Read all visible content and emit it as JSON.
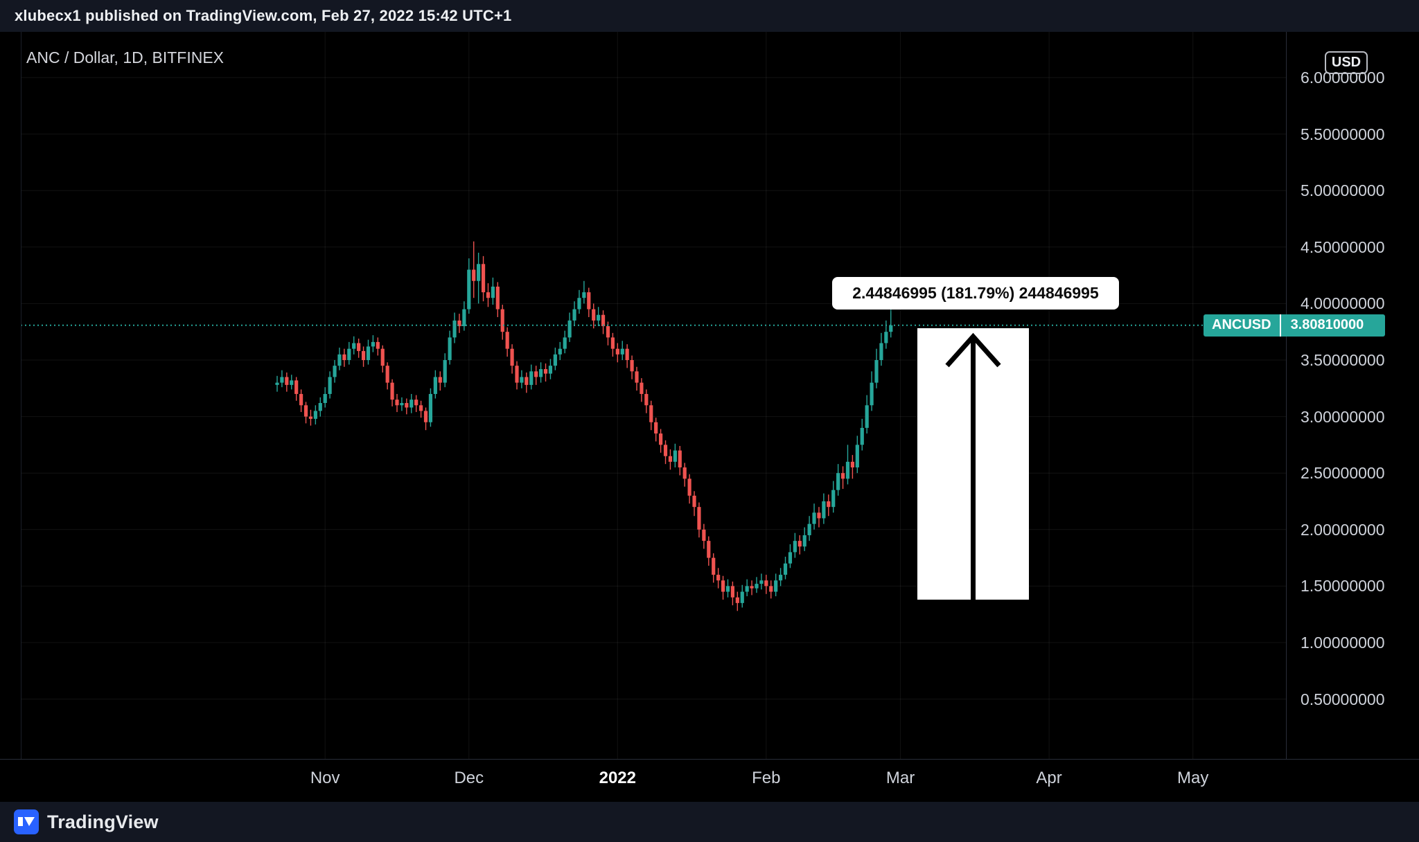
{
  "publish_bar": {
    "text": "xlubecx1 published on TradingView.com, Feb 27, 2022 15:42 UTC+1"
  },
  "legend": {
    "text": "ANC / Dollar, 1D, BITFINEX"
  },
  "currency_button": {
    "label": "USD"
  },
  "price_label": {
    "symbol": "ANCUSD",
    "price": "3.80810000"
  },
  "callout": {
    "text": "2.44846995 (181.79%) 244846995"
  },
  "footer": {
    "brand": "TradingView"
  },
  "colors": {
    "up": "#26a69a",
    "down": "#ef5350",
    "price_line": "#26a69a",
    "accent_white": "#ffffff"
  },
  "chart_data": {
    "type": "candlestick",
    "title": "ANC / Dollar, 1D, BITFINEX",
    "symbol": "ANCUSD",
    "interval": "1D",
    "exchange": "BITFINEX",
    "last_price": 3.8081,
    "measure_annotation": {
      "abs_change": "2.44846995",
      "pct_change": "181.79%",
      "extra": "244846995"
    },
    "ylim": [
      0.0,
      6.35
    ],
    "grid": true,
    "y_tick_values": [
      6.0,
      5.5,
      5.0,
      4.5,
      4.0,
      3.5,
      3.0,
      2.5,
      2.0,
      1.5,
      1.0,
      0.5
    ],
    "y_ticks": [
      "6.00000000",
      "5.50000000",
      "5.00000000",
      "4.50000000",
      "4.00000000",
      "3.50000000",
      "3.00000000",
      "2.50000000",
      "2.00000000",
      "1.50000000",
      "1.00000000",
      "0.50000000"
    ],
    "x_ticks": [
      {
        "label": "Nov",
        "day": 10,
        "bold": false
      },
      {
        "label": "Dec",
        "day": 40,
        "bold": false
      },
      {
        "label": "2022",
        "day": 71,
        "bold": true
      },
      {
        "label": "Feb",
        "day": 102,
        "bold": false
      },
      {
        "label": "Mar",
        "day": 130,
        "bold": false
      },
      {
        "label": "Apr",
        "day": 161,
        "bold": false
      },
      {
        "label": "May",
        "day": 191,
        "bold": false
      }
    ],
    "candles": [
      [
        3.28,
        3.36,
        3.22,
        3.3
      ],
      [
        3.3,
        3.41,
        3.26,
        3.35
      ],
      [
        3.35,
        3.39,
        3.22,
        3.28
      ],
      [
        3.28,
        3.37,
        3.24,
        3.32
      ],
      [
        3.32,
        3.35,
        3.14,
        3.2
      ],
      [
        3.2,
        3.24,
        3.04,
        3.1
      ],
      [
        3.1,
        3.13,
        2.94,
        3.0
      ],
      [
        3.0,
        3.06,
        2.92,
        2.98
      ],
      [
        2.98,
        3.1,
        2.93,
        3.05
      ],
      [
        3.05,
        3.17,
        3.0,
        3.12
      ],
      [
        3.12,
        3.26,
        3.08,
        3.2
      ],
      [
        3.2,
        3.4,
        3.16,
        3.35
      ],
      [
        3.35,
        3.5,
        3.3,
        3.45
      ],
      [
        3.45,
        3.61,
        3.41,
        3.55
      ],
      [
        3.55,
        3.6,
        3.44,
        3.5
      ],
      [
        3.5,
        3.66,
        3.46,
        3.6
      ],
      [
        3.6,
        3.71,
        3.55,
        3.65
      ],
      [
        3.65,
        3.69,
        3.52,
        3.58
      ],
      [
        3.58,
        3.62,
        3.44,
        3.5
      ],
      [
        3.5,
        3.68,
        3.46,
        3.62
      ],
      [
        3.62,
        3.72,
        3.57,
        3.66
      ],
      [
        3.66,
        3.7,
        3.54,
        3.6
      ],
      [
        3.6,
        3.63,
        3.39,
        3.45
      ],
      [
        3.45,
        3.48,
        3.24,
        3.3
      ],
      [
        3.3,
        3.33,
        3.09,
        3.15
      ],
      [
        3.15,
        3.2,
        3.04,
        3.1
      ],
      [
        3.1,
        3.17,
        3.05,
        3.12
      ],
      [
        3.12,
        3.16,
        3.02,
        3.08
      ],
      [
        3.08,
        3.2,
        3.03,
        3.15
      ],
      [
        3.15,
        3.19,
        3.04,
        3.1
      ],
      [
        3.1,
        3.14,
        2.99,
        3.05
      ],
      [
        3.05,
        3.08,
        2.88,
        2.95
      ],
      [
        2.95,
        3.25,
        2.91,
        3.2
      ],
      [
        3.2,
        3.41,
        3.16,
        3.35
      ],
      [
        3.35,
        3.4,
        3.23,
        3.3
      ],
      [
        3.3,
        3.56,
        3.26,
        3.5
      ],
      [
        3.5,
        3.76,
        3.46,
        3.7
      ],
      [
        3.7,
        3.92,
        3.65,
        3.85
      ],
      [
        3.85,
        3.91,
        3.74,
        3.8
      ],
      [
        3.8,
        4.02,
        3.76,
        3.95
      ],
      [
        3.95,
        4.4,
        3.91,
        4.3
      ],
      [
        4.3,
        4.55,
        4.05,
        4.2
      ],
      [
        4.2,
        4.45,
        4.0,
        4.35
      ],
      [
        4.35,
        4.42,
        4.02,
        4.1
      ],
      [
        4.1,
        4.18,
        3.97,
        4.05
      ],
      [
        4.05,
        4.23,
        3.99,
        4.15
      ],
      [
        4.15,
        4.19,
        3.88,
        3.95
      ],
      [
        3.95,
        3.99,
        3.68,
        3.75
      ],
      [
        3.75,
        3.79,
        3.53,
        3.6
      ],
      [
        3.6,
        3.64,
        3.38,
        3.45
      ],
      [
        3.45,
        3.49,
        3.24,
        3.3
      ],
      [
        3.3,
        3.41,
        3.25,
        3.35
      ],
      [
        3.35,
        3.39,
        3.21,
        3.28
      ],
      [
        3.28,
        3.46,
        3.24,
        3.4
      ],
      [
        3.4,
        3.45,
        3.28,
        3.35
      ],
      [
        3.35,
        3.48,
        3.3,
        3.42
      ],
      [
        3.42,
        3.47,
        3.31,
        3.38
      ],
      [
        3.38,
        3.51,
        3.33,
        3.45
      ],
      [
        3.45,
        3.61,
        3.41,
        3.55
      ],
      [
        3.55,
        3.66,
        3.5,
        3.6
      ],
      [
        3.6,
        3.76,
        3.56,
        3.7
      ],
      [
        3.7,
        3.92,
        3.66,
        3.85
      ],
      [
        3.85,
        4.02,
        3.8,
        3.95
      ],
      [
        3.95,
        4.12,
        3.91,
        4.05
      ],
      [
        4.05,
        4.2,
        4.0,
        4.1
      ],
      [
        4.1,
        4.14,
        3.88,
        3.95
      ],
      [
        3.95,
        4.0,
        3.78,
        3.85
      ],
      [
        3.85,
        3.97,
        3.8,
        3.9
      ],
      [
        3.9,
        3.94,
        3.73,
        3.8
      ],
      [
        3.8,
        3.84,
        3.63,
        3.7
      ],
      [
        3.7,
        3.74,
        3.53,
        3.6
      ],
      [
        3.6,
        3.65,
        3.48,
        3.55
      ],
      [
        3.55,
        3.67,
        3.5,
        3.6
      ],
      [
        3.6,
        3.64,
        3.43,
        3.5
      ],
      [
        3.5,
        3.54,
        3.33,
        3.4
      ],
      [
        3.4,
        3.44,
        3.23,
        3.3
      ],
      [
        3.3,
        3.34,
        3.13,
        3.2
      ],
      [
        3.2,
        3.24,
        3.03,
        3.1
      ],
      [
        3.1,
        3.14,
        2.88,
        2.95
      ],
      [
        2.95,
        2.99,
        2.78,
        2.85
      ],
      [
        2.85,
        2.89,
        2.68,
        2.75
      ],
      [
        2.75,
        2.79,
        2.58,
        2.65
      ],
      [
        2.65,
        2.71,
        2.53,
        2.6
      ],
      [
        2.6,
        2.76,
        2.55,
        2.7
      ],
      [
        2.7,
        2.74,
        2.48,
        2.55
      ],
      [
        2.55,
        2.59,
        2.38,
        2.45
      ],
      [
        2.45,
        2.49,
        2.23,
        2.3
      ],
      [
        2.3,
        2.34,
        2.12,
        2.2
      ],
      [
        2.2,
        2.24,
        1.93,
        2.0
      ],
      [
        2.0,
        2.05,
        1.83,
        1.9
      ],
      [
        1.9,
        1.94,
        1.68,
        1.75
      ],
      [
        1.75,
        1.79,
        1.53,
        1.6
      ],
      [
        1.6,
        1.66,
        1.48,
        1.55
      ],
      [
        1.55,
        1.59,
        1.38,
        1.45
      ],
      [
        1.45,
        1.56,
        1.4,
        1.5
      ],
      [
        1.5,
        1.54,
        1.33,
        1.4
      ],
      [
        1.4,
        1.45,
        1.28,
        1.35
      ],
      [
        1.35,
        1.51,
        1.31,
        1.45
      ],
      [
        1.45,
        1.56,
        1.41,
        1.5
      ],
      [
        1.5,
        1.55,
        1.42,
        1.48
      ],
      [
        1.48,
        1.58,
        1.44,
        1.52
      ],
      [
        1.52,
        1.61,
        1.47,
        1.55
      ],
      [
        1.55,
        1.6,
        1.43,
        1.5
      ],
      [
        1.5,
        1.55,
        1.39,
        1.45
      ],
      [
        1.45,
        1.61,
        1.41,
        1.55
      ],
      [
        1.55,
        1.66,
        1.5,
        1.6
      ],
      [
        1.6,
        1.76,
        1.56,
        1.7
      ],
      [
        1.7,
        1.87,
        1.66,
        1.8
      ],
      [
        1.8,
        1.97,
        1.75,
        1.9
      ],
      [
        1.9,
        1.95,
        1.78,
        1.85
      ],
      [
        1.85,
        2.02,
        1.81,
        1.95
      ],
      [
        1.95,
        2.12,
        1.9,
        2.05
      ],
      [
        2.05,
        2.23,
        2.0,
        2.15
      ],
      [
        2.15,
        2.2,
        2.02,
        2.1
      ],
      [
        2.1,
        2.32,
        2.05,
        2.25
      ],
      [
        2.25,
        2.31,
        2.12,
        2.2
      ],
      [
        2.2,
        2.43,
        2.15,
        2.35
      ],
      [
        2.35,
        2.58,
        2.3,
        2.5
      ],
      [
        2.5,
        2.56,
        2.36,
        2.45
      ],
      [
        2.45,
        2.75,
        2.4,
        2.6
      ],
      [
        2.6,
        2.66,
        2.45,
        2.55
      ],
      [
        2.55,
        2.83,
        2.5,
        2.75
      ],
      [
        2.75,
        2.98,
        2.7,
        2.9
      ],
      [
        2.9,
        3.19,
        2.85,
        3.1
      ],
      [
        3.1,
        3.4,
        3.05,
        3.3
      ],
      [
        3.3,
        3.6,
        3.25,
        3.5
      ],
      [
        3.5,
        3.74,
        3.45,
        3.65
      ],
      [
        3.65,
        3.85,
        3.6,
        3.75
      ],
      [
        3.75,
        4.0,
        3.7,
        3.8081
      ]
    ]
  }
}
